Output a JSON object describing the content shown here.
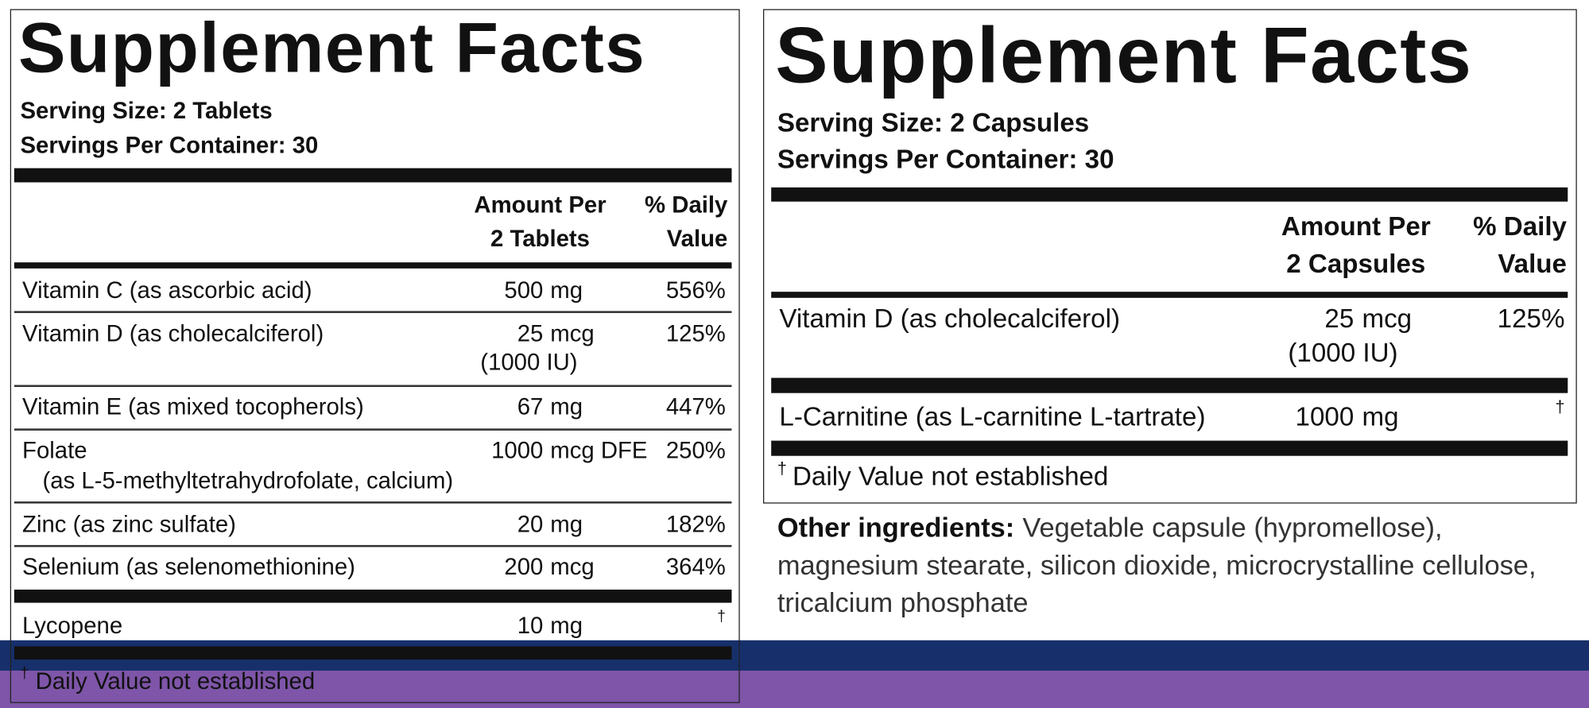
{
  "panels": [
    {
      "title": "Supplement Facts",
      "serving_size": "Serving Size: 2 Tablets",
      "servings_per_container": "Servings Per Container: 30",
      "amount_header": [
        "Amount Per",
        "2 Tablets"
      ],
      "dv_header": [
        "% Daily",
        "Value"
      ],
      "rows": [
        {
          "name": "Vitamin C (as ascorbic acid)",
          "qty": "500",
          "unit": "mg",
          "dv": "556%"
        },
        {
          "name": "Vitamin D (as cholecalciferol)",
          "qty": "25",
          "unit": "mcg",
          "amount2": "(1000 IU)",
          "dv": "125%"
        },
        {
          "name": "Vitamin E (as mixed tocopherols)",
          "qty": "67",
          "unit": "mg",
          "dv": "447%"
        },
        {
          "name": "Folate",
          "subname": "(as L-5-methyltetrahydrofolate, calcium)",
          "qty": "1000",
          "unit": "mcg DFE",
          "dv": "250%"
        },
        {
          "name": "Zinc (as zinc sulfate)",
          "qty": "20",
          "unit": "mg",
          "dv": "182%"
        },
        {
          "name": "Selenium (as selenomethionine)",
          "qty": "200",
          "unit": "mcg",
          "dv": "364%"
        },
        {
          "name": "Lycopene",
          "qty": "10",
          "unit": "mg",
          "dv": "†"
        }
      ],
      "footnote": {
        "symbol": "†",
        "text": "Daily Value not established"
      }
    },
    {
      "title": "Supplement Facts",
      "serving_size": "Serving Size: 2 Capsules",
      "servings_per_container": "Servings Per Container: 30",
      "amount_header": [
        "Amount Per",
        "2 Capsules"
      ],
      "dv_header": [
        "% Daily",
        "Value"
      ],
      "rows": [
        {
          "name": "Vitamin D (as cholecalciferol)",
          "qty": "25",
          "unit": "mcg",
          "amount2": "(1000 IU)",
          "dv": "125%"
        },
        {
          "name": "L-Carnitine (as L-carnitine L-tartrate)",
          "qty": "1000",
          "unit": "mg",
          "dv": "†"
        }
      ],
      "footnote": {
        "symbol": "†",
        "text": "Daily Value not established"
      },
      "other_ingredients": {
        "label": "Other ingredients:",
        "text": "Vegetable capsule (hypromellose), magnesium stearate, silicon dioxide, microcrystalline cellulose, tricalcium phosphate"
      }
    }
  ]
}
